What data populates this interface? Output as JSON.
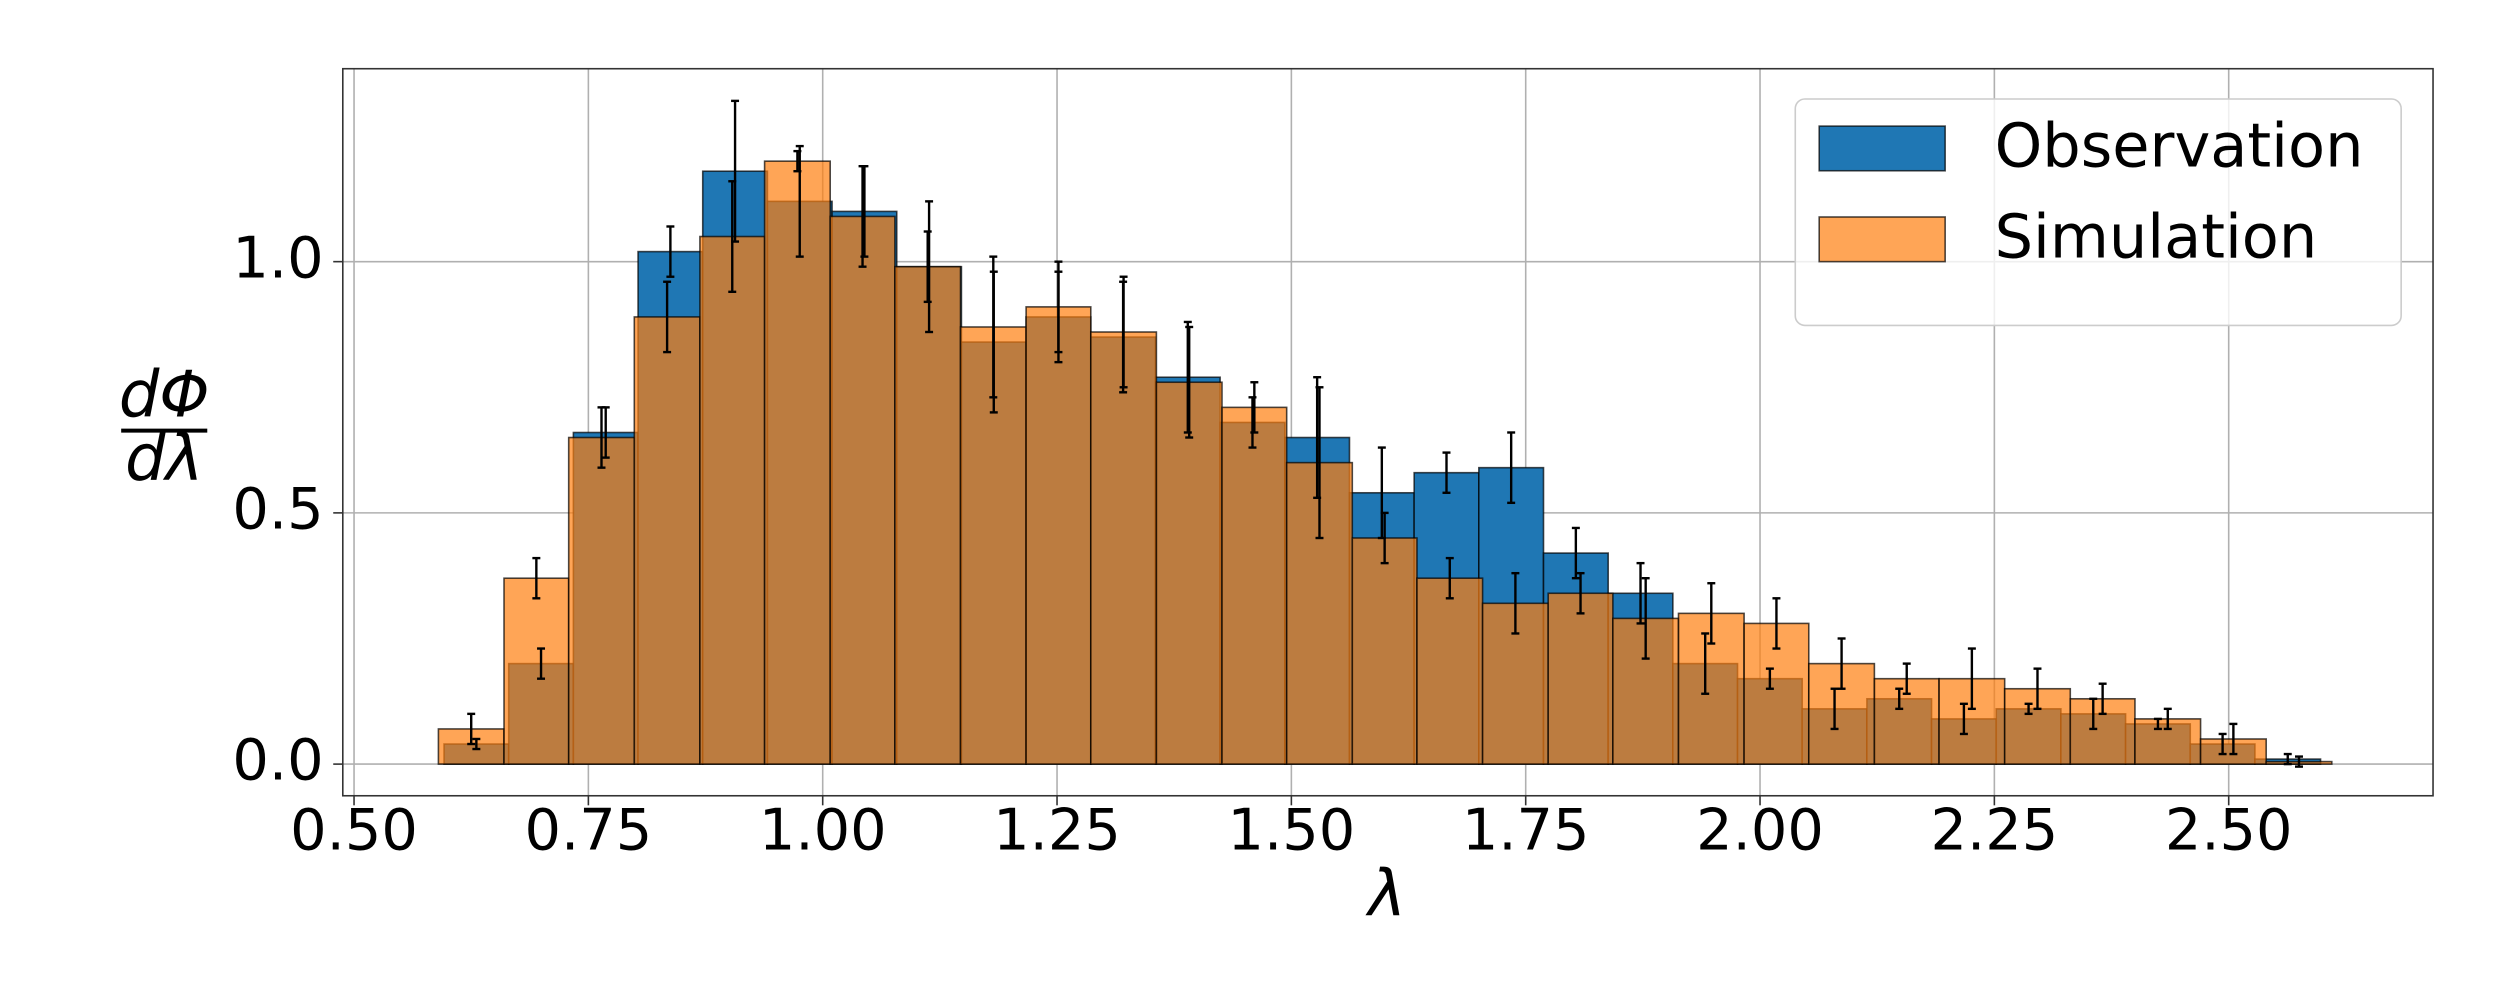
{
  "chart_data": {
    "type": "histogram",
    "xlabel": "λ",
    "ylabel": {
      "numerator": "dΦ",
      "denominator": "dλ"
    },
    "xlim": [
      0.488,
      2.718
    ],
    "ylim": [
      -0.063,
      1.384
    ],
    "xticks": [
      {
        "value": 0.5,
        "label": "0.50"
      },
      {
        "value": 0.75,
        "label": "0.75"
      },
      {
        "value": 1.0,
        "label": "1.00"
      },
      {
        "value": 1.25,
        "label": "1.25"
      },
      {
        "value": 1.5,
        "label": "1.50"
      },
      {
        "value": 1.75,
        "label": "1.75"
      },
      {
        "value": 2.0,
        "label": "2.00"
      },
      {
        "value": 2.25,
        "label": "2.25"
      },
      {
        "value": 2.5,
        "label": "2.50"
      }
    ],
    "yticks": [
      {
        "value": 0,
        "label": "0.0"
      },
      {
        "value": 0.5,
        "label": "0.5"
      },
      {
        "value": 1.0,
        "label": "1.0"
      }
    ],
    "grid": true,
    "legend": "upper right",
    "series": [
      {
        "name": "Observation",
        "color": "#1f77b4",
        "opacity": 1,
        "bins": [
          0.596,
          0.665,
          0.734,
          0.803,
          0.872,
          0.941,
          1.01,
          1.079,
          1.148,
          1.217,
          1.286,
          1.355,
          1.424,
          1.493,
          1.562,
          1.631,
          1.7,
          1.769,
          1.838,
          1.907,
          1.976,
          2.045,
          2.114,
          2.183,
          2.252,
          2.321,
          2.39,
          2.459,
          2.528,
          2.598
        ],
        "values": [
          0.04,
          0.2,
          0.66,
          1.02,
          1.18,
          1.12,
          1.1,
          0.99,
          0.84,
          0.89,
          0.85,
          0.77,
          0.68,
          0.65,
          0.54,
          0.58,
          0.59,
          0.42,
          0.34,
          0.2,
          0.17,
          0.11,
          0.13,
          0.09,
          0.11,
          0.1,
          0.08,
          0.04,
          0.01
        ],
        "errors": [
          0.01,
          0.03,
          0.05,
          0.05,
          0.14,
          0.11,
          0.09,
          0.13,
          0.14,
          0.09,
          0.11,
          0.11,
          0.05,
          0.12,
          0.09,
          0.04,
          0.07,
          0.05,
          0.06,
          0.06,
          0.02,
          0.04,
          0.02,
          0.03,
          0.01,
          0.03,
          0.01,
          0.02,
          0.01
        ]
      },
      {
        "name": "Simulation",
        "color": "#ff7f0e",
        "opacity": 0.7,
        "bins": [
          0.59,
          0.66,
          0.729,
          0.799,
          0.869,
          0.938,
          1.008,
          1.077,
          1.147,
          1.217,
          1.286,
          1.356,
          1.426,
          1.495,
          1.565,
          1.634,
          1.704,
          1.774,
          1.843,
          1.913,
          1.983,
          2.052,
          2.122,
          2.191,
          2.261,
          2.331,
          2.4,
          2.47,
          2.54,
          2.61
        ],
        "values": [
          0.07,
          0.37,
          0.65,
          0.89,
          1.05,
          1.2,
          1.09,
          0.99,
          0.87,
          0.91,
          0.86,
          0.76,
          0.71,
          0.6,
          0.45,
          0.37,
          0.32,
          0.34,
          0.29,
          0.3,
          0.28,
          0.2,
          0.17,
          0.17,
          0.15,
          0.13,
          0.09,
          0.05,
          0.005
        ],
        "errors": [
          0.03,
          0.04,
          0.06,
          0.07,
          0.11,
          0.02,
          0.1,
          0.07,
          0.14,
          0.09,
          0.11,
          0.11,
          0.05,
          0.15,
          0.05,
          0.04,
          0.06,
          0.04,
          0.08,
          0.06,
          0.05,
          0.05,
          0.03,
          0.06,
          0.04,
          0.03,
          0.02,
          0.03,
          0.01
        ]
      }
    ]
  }
}
